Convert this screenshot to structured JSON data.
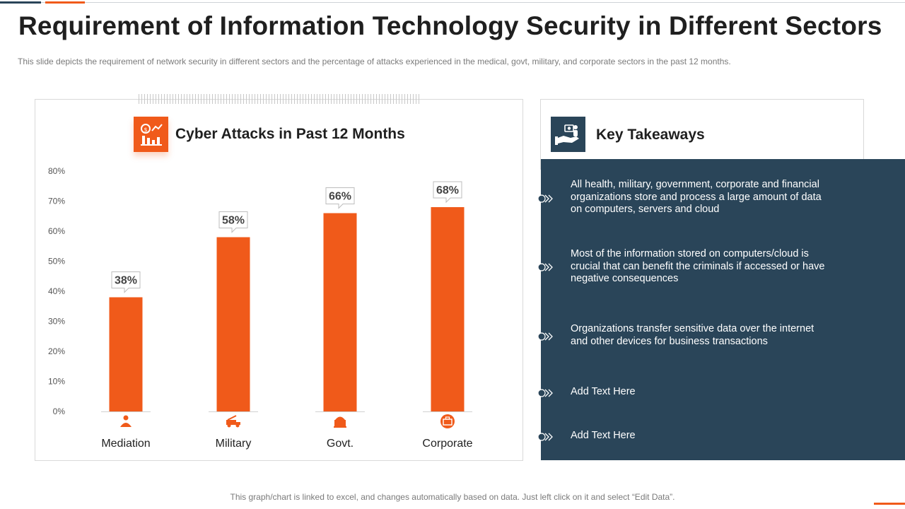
{
  "title": "Requirement of Information Technology Security in Different Sectors",
  "subtitle": "This slide depicts the requirement  of network security in different  sectors and the percentage  of attacks experienced  in the medical, govt, military, and corporate sectors in the past 12 months.",
  "chart_panel": {
    "icon": "analytics-dollar-icon"
  },
  "chart_data": {
    "type": "bar",
    "title": "Cyber Attacks in Past 12 Months",
    "categories": [
      "Mediation",
      "Military",
      "Govt.",
      "Corporate"
    ],
    "values": [
      38,
      58,
      66,
      68
    ],
    "data_labels": [
      "38%",
      "58%",
      "66%",
      "68%"
    ],
    "category_icons": [
      "doctor-icon",
      "military-truck-icon",
      "government-building-icon",
      "briefcase-icon"
    ],
    "yticks": [
      0,
      10,
      20,
      30,
      40,
      50,
      60,
      70,
      80
    ],
    "ytick_labels": [
      "0%",
      "10%",
      "20%",
      "30%",
      "40%",
      "50%",
      "60%",
      "70%",
      "80%"
    ],
    "ylim": [
      0,
      80
    ],
    "xlabel": "",
    "ylabel": "",
    "grid": false,
    "legend": "none",
    "bar_color": "#f05a1a"
  },
  "takeaways": {
    "title": "Key Takeaways",
    "icon": "hand-money-icon",
    "items": [
      "All health, military, government, corporate and financial organizations store and process a large amount of data on computers, servers and cloud",
      "Most of the information stored on computers/cloud is crucial that can benefit the criminals if accessed or have negative consequences",
      "Organizations transfer sensitive data over the internet and other devices for business transactions",
      "Add Text Here",
      "Add Text Here"
    ]
  },
  "footer": "This graph/chart is linked to excel,  and changes automatically based on data. Just left click on it and select “Edit Data”.",
  "colors": {
    "accent": "#f05a1a",
    "dark": "#2a4559",
    "text": "#1f1f1f",
    "muted": "#7a7a7a"
  }
}
